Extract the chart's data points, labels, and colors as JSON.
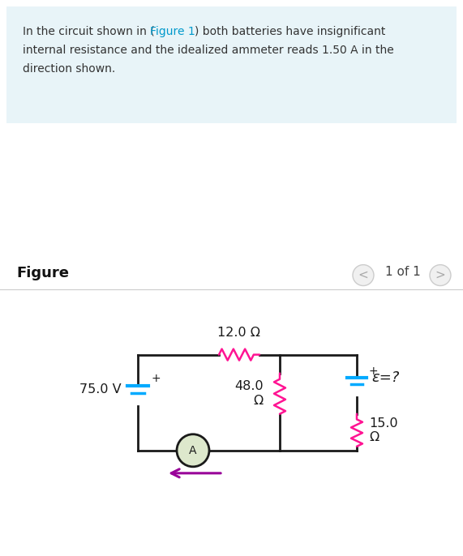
{
  "bg_color": "#ffffff",
  "info_box_color": "#e8f4f8",
  "figure_label": "Figure",
  "page_label": "1 of 1",
  "resistor_color": "#ff1493",
  "battery_color": "#00aaff",
  "wire_color": "#1a1a1a",
  "ammeter_fill": "#dde8cc",
  "arrow_color": "#990099",
  "label_12ohm": "12.0 Ω",
  "label_48ohm": "48.0\nΩ",
  "label_15ohm": "15.0\nΩ",
  "label_75v": "75.0 V",
  "label_emf": "ε=?",
  "plus_sign": "+",
  "fig1_color": "#0099cc",
  "nav_color": "#aaaaaa",
  "text_color": "#333333",
  "info_fontsize": 10.0,
  "circuit_text_fontsize": 11.5
}
